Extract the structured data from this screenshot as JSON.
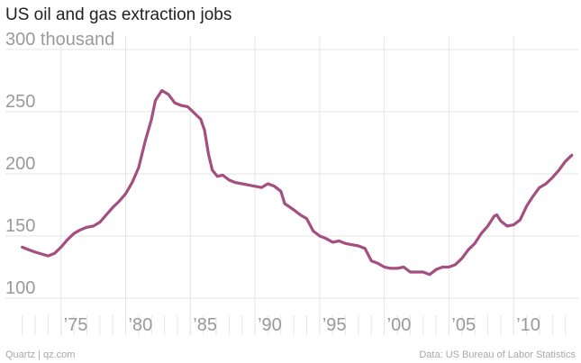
{
  "title": "US oil and gas extraction jobs",
  "footer": {
    "source_left": "Quartz | qz.com",
    "source_right": "Data: US Bureau of Labor Statistics"
  },
  "colors": {
    "line": "#a54e80",
    "grid": "#e6e6e6",
    "tick_text": "#9a9a9a",
    "title_text": "#222222",
    "footer_text": "#a8a8a8"
  },
  "chart_data": {
    "type": "line",
    "title": "US oil and gas extraction jobs",
    "xlabel": "",
    "ylabel": "",
    "xlim": [
      1970.7,
      2015.0
    ],
    "ylim": [
      100,
      300
    ],
    "y_ticks": [
      {
        "value": 300,
        "label": "300 thousand"
      },
      {
        "value": 250,
        "label": "250"
      },
      {
        "value": 200,
        "label": "200"
      },
      {
        "value": 150,
        "label": "150"
      },
      {
        "value": 100,
        "label": "100"
      }
    ],
    "x_ticks": [
      {
        "value": 1975,
        "label": "’75"
      },
      {
        "value": 1980,
        "label": "’80"
      },
      {
        "value": 1985,
        "label": "’85"
      },
      {
        "value": 1990,
        "label": "’90"
      },
      {
        "value": 1995,
        "label": "’95"
      },
      {
        "value": 2000,
        "label": "’00"
      },
      {
        "value": 2005,
        "label": "’05"
      },
      {
        "value": 2010,
        "label": "’10"
      }
    ],
    "grid": true,
    "series": [
      {
        "values": [
          [
            1972.0,
            141
          ],
          [
            1972.5,
            139
          ],
          [
            1973.0,
            137
          ],
          [
            1973.5,
            135.5
          ],
          [
            1974.0,
            134
          ],
          [
            1974.5,
            136
          ],
          [
            1975.0,
            141
          ],
          [
            1975.5,
            147
          ],
          [
            1976.0,
            152
          ],
          [
            1976.5,
            155
          ],
          [
            1977.0,
            157
          ],
          [
            1977.5,
            158
          ],
          [
            1978.0,
            161
          ],
          [
            1978.5,
            167
          ],
          [
            1979.0,
            173
          ],
          [
            1979.5,
            178
          ],
          [
            1980.0,
            184
          ],
          [
            1980.5,
            193
          ],
          [
            1981.0,
            205
          ],
          [
            1981.5,
            226
          ],
          [
            1982.0,
            244
          ],
          [
            1982.3,
            259
          ],
          [
            1982.8,
            267
          ],
          [
            1983.3,
            264
          ],
          [
            1983.8,
            257
          ],
          [
            1984.3,
            255
          ],
          [
            1984.8,
            254
          ],
          [
            1985.3,
            249
          ],
          [
            1985.8,
            244
          ],
          [
            1986.1,
            235
          ],
          [
            1986.4,
            216
          ],
          [
            1986.7,
            203
          ],
          [
            1987.1,
            198
          ],
          [
            1987.5,
            199
          ],
          [
            1988.0,
            195
          ],
          [
            1988.5,
            193
          ],
          [
            1989.0,
            192
          ],
          [
            1989.5,
            191
          ],
          [
            1990.0,
            190
          ],
          [
            1990.5,
            189
          ],
          [
            1991.0,
            192
          ],
          [
            1991.5,
            190
          ],
          [
            1992.0,
            186
          ],
          [
            1992.3,
            176
          ],
          [
            1993.0,
            171
          ],
          [
            1993.5,
            167
          ],
          [
            1994.0,
            164
          ],
          [
            1994.5,
            154
          ],
          [
            1995.0,
            150
          ],
          [
            1995.5,
            148
          ],
          [
            1996.0,
            145
          ],
          [
            1996.5,
            146
          ],
          [
            1997.0,
            144
          ],
          [
            1997.5,
            143
          ],
          [
            1998.0,
            142
          ],
          [
            1998.5,
            140
          ],
          [
            1999.0,
            130
          ],
          [
            1999.5,
            128
          ],
          [
            2000.0,
            125
          ],
          [
            2000.5,
            124
          ],
          [
            2001.0,
            124
          ],
          [
            2001.5,
            125
          ],
          [
            2002.0,
            121
          ],
          [
            2002.5,
            121
          ],
          [
            2003.0,
            121
          ],
          [
            2003.5,
            119
          ],
          [
            2004.0,
            123
          ],
          [
            2004.5,
            125
          ],
          [
            2005.0,
            125
          ],
          [
            2005.5,
            127
          ],
          [
            2006.0,
            132
          ],
          [
            2006.5,
            139
          ],
          [
            2007.0,
            144
          ],
          [
            2007.5,
            152
          ],
          [
            2008.0,
            158
          ],
          [
            2008.5,
            166
          ],
          [
            2008.7,
            167
          ],
          [
            2009.0,
            162
          ],
          [
            2009.5,
            158
          ],
          [
            2010.0,
            159
          ],
          [
            2010.5,
            163
          ],
          [
            2011.0,
            174
          ],
          [
            2011.5,
            182
          ],
          [
            2012.0,
            189
          ],
          [
            2012.5,
            192
          ],
          [
            2013.0,
            197
          ],
          [
            2013.5,
            203
          ],
          [
            2014.0,
            210
          ],
          [
            2014.5,
            215
          ]
        ]
      }
    ]
  }
}
